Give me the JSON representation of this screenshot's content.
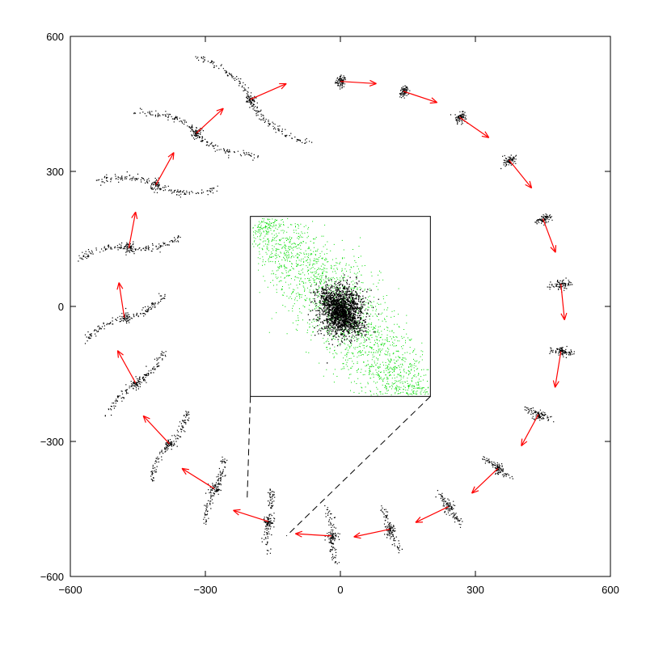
{
  "chart_data": {
    "type": "scatter",
    "title": "",
    "xlabel": "",
    "ylabel": "",
    "xlim": [
      -600,
      600
    ],
    "ylim": [
      -600,
      600
    ],
    "grid": false,
    "x_ticks": [
      {
        "value": -600,
        "label": "−600"
      },
      {
        "value": -300,
        "label": "−300"
      },
      {
        "value": 0,
        "label": "0"
      },
      {
        "value": 300,
        "label": "300"
      },
      {
        "value": 600,
        "label": "600"
      }
    ],
    "y_ticks": [
      {
        "value": -600,
        "label": "−600"
      },
      {
        "value": -300,
        "label": "−300"
      },
      {
        "value": 0,
        "label": "0"
      },
      {
        "value": 300,
        "label": "300"
      },
      {
        "value": 600,
        "label": "600"
      }
    ],
    "snapshots": [
      {
        "x": 0,
        "y": 500,
        "vx": 80,
        "vy": -5,
        "tail": 10
      },
      {
        "x": 140,
        "y": 478,
        "vx": 75,
        "vy": -25,
        "tail": 12
      },
      {
        "x": 265,
        "y": 420,
        "vx": 65,
        "vy": -45,
        "tail": 14
      },
      {
        "x": 375,
        "y": 325,
        "vx": 50,
        "vy": -62,
        "tail": 16
      },
      {
        "x": 450,
        "y": 195,
        "vx": 28,
        "vy": -75,
        "tail": 18
      },
      {
        "x": 490,
        "y": 50,
        "vx": 8,
        "vy": -80,
        "tail": 22
      },
      {
        "x": 490,
        "y": -100,
        "vx": -13,
        "vy": -80,
        "tail": 26
      },
      {
        "x": 440,
        "y": -240,
        "vx": -38,
        "vy": -70,
        "tail": 32
      },
      {
        "x": 350,
        "y": -360,
        "vx": -58,
        "vy": -55,
        "tail": 38
      },
      {
        "x": 240,
        "y": -445,
        "vx": -73,
        "vy": -35,
        "tail": 45
      },
      {
        "x": 110,
        "y": -495,
        "vx": -80,
        "vy": -17,
        "tail": 52
      },
      {
        "x": -20,
        "y": -510,
        "vx": -80,
        "vy": 5,
        "tail": 60
      },
      {
        "x": -160,
        "y": -478,
        "vx": -78,
        "vy": 25,
        "tail": 68
      },
      {
        "x": -280,
        "y": -405,
        "vx": -72,
        "vy": 45,
        "tail": 76
      },
      {
        "x": -380,
        "y": -305,
        "vx": -58,
        "vy": 62,
        "tail": 84
      },
      {
        "x": -455,
        "y": -170,
        "vx": -40,
        "vy": 72,
        "tail": 92
      },
      {
        "x": -480,
        "y": -25,
        "vx": -12,
        "vy": 78,
        "tail": 100
      },
      {
        "x": -470,
        "y": 130,
        "vx": 15,
        "vy": 80,
        "tail": 110
      },
      {
        "x": -410,
        "y": 270,
        "vx": 40,
        "vy": 72,
        "tail": 120
      },
      {
        "x": -320,
        "y": 385,
        "vx": 60,
        "vy": 55,
        "tail": 130
      },
      {
        "x": -200,
        "y": 460,
        "vx": 80,
        "vy": 35,
        "tail": 140
      }
    ],
    "inset": {
      "frame_xlim": [
        -200,
        200
      ],
      "frame_ylim": [
        -200,
        200
      ],
      "zoom_of": {
        "x": -120,
        "y": -510
      },
      "colors": {
        "core": "#000000",
        "stripped": "#00dd00"
      }
    },
    "colors": {
      "points": "#000000",
      "arrows": "#ff0000",
      "inset_stars": "#00dd00"
    }
  }
}
